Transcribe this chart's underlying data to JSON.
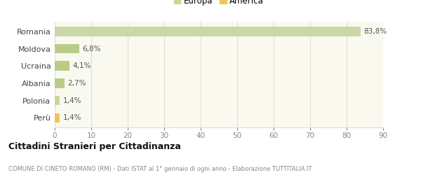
{
  "categories": [
    "Perù",
    "Polonia",
    "Albania",
    "Ucraina",
    "Moldova",
    "Romania"
  ],
  "values": [
    1.4,
    1.4,
    2.7,
    4.1,
    6.8,
    83.8
  ],
  "labels": [
    "1,4%",
    "1,4%",
    "2,7%",
    "4,1%",
    "6,8%",
    "83,8%"
  ],
  "bar_colors": [
    "#f0c455",
    "#c8d89a",
    "#b8cc88",
    "#b8cc88",
    "#b8cc88",
    "#c8d8a8"
  ],
  "legend_items": [
    {
      "label": "Europa",
      "color": "#c8d89a"
    },
    {
      "label": "America",
      "color": "#f0c455"
    }
  ],
  "xlim": [
    0,
    90
  ],
  "xticks": [
    0,
    10,
    20,
    30,
    40,
    50,
    60,
    70,
    80,
    90
  ],
  "title": "Cittadini Stranieri per Cittadinanza",
  "subtitle": "COMUNE DI CINETO ROMANO (RM) - Dati ISTAT al 1° gennaio di ogni anno - Elaborazione TUTTITALIA.IT",
  "background_color": "#ffffff",
  "plot_bg_color": "#f9f9f0",
  "grid_color": "#e0e0d0"
}
